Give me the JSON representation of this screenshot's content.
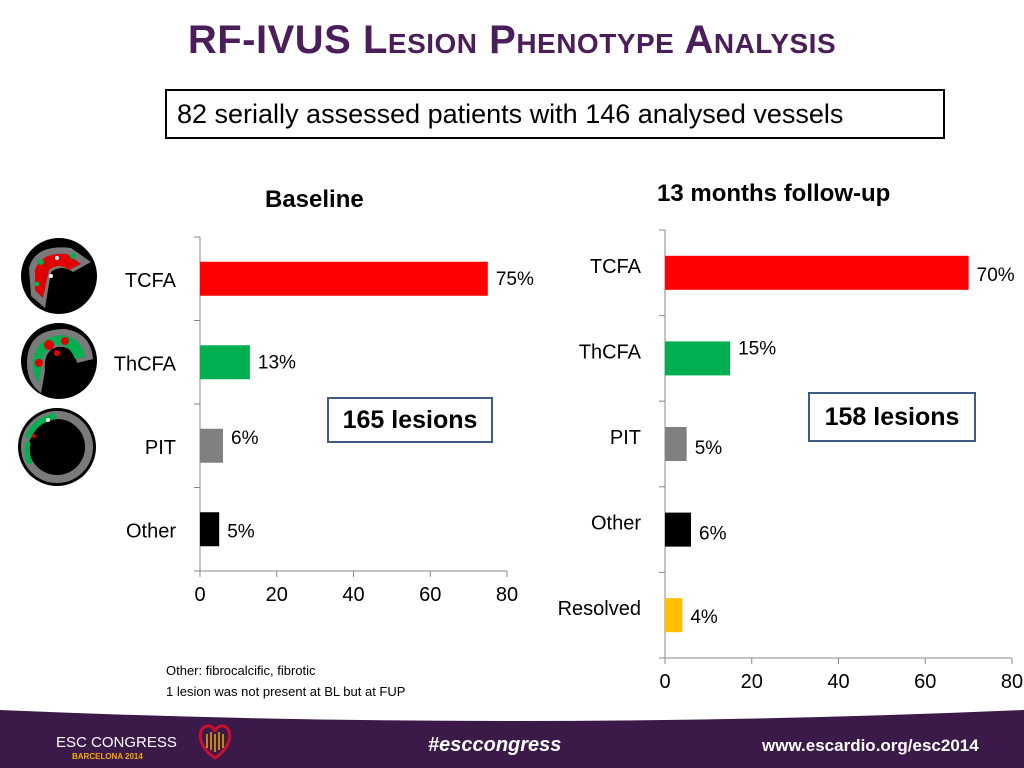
{
  "title": "RF-IVUS Lesion Phenotype Analysis",
  "info_box": "82 serially assessed patients with 146 analysed vessels",
  "footnotes": [
    "Other: fibrocalcific, fibrotic",
    "1 lesion was not present at BL but at FUP"
  ],
  "footer": {
    "logo_line1": "ESC CONGRESS",
    "logo_line2": "BARCELONA 2014",
    "hashtag": "#esccongress",
    "url": "www.escardio.org/esc2014"
  },
  "thumbnail_icons": [
    "ivus-tcfa-icon",
    "ivus-thcfa-icon",
    "ivus-pit-icon"
  ],
  "colors": {
    "title": "#4b1d5a",
    "tcfa": "#ff0000",
    "thcfa": "#00b050",
    "pit": "#808080",
    "other": "#000000",
    "resolved": "#ffc000",
    "lesion_box_border": "#3e5b86",
    "footer_bg": "#3b1a4a"
  },
  "chart_data": [
    {
      "type": "bar",
      "orientation": "horizontal",
      "title": "Baseline",
      "annotation": "165 lesions",
      "categories": [
        "TCFA",
        "ThCFA",
        "PIT",
        "Other"
      ],
      "values": [
        75,
        13,
        6,
        5
      ],
      "value_labels": [
        "75%",
        "13%",
        "6%",
        "5%"
      ],
      "bar_colors": [
        "#ff0000",
        "#00b050",
        "#808080",
        "#000000"
      ],
      "xlim": [
        0,
        80
      ],
      "xticks": [
        "0",
        "20",
        "40",
        "60",
        "80"
      ],
      "grid": false
    },
    {
      "type": "bar",
      "orientation": "horizontal",
      "title": "13 months follow-up",
      "annotation": "158 lesions",
      "categories": [
        "TCFA",
        "ThCFA",
        "PIT",
        "Other",
        "Resolved"
      ],
      "values": [
        70,
        15,
        5,
        6,
        4
      ],
      "value_labels": [
        "70%",
        "15%",
        "5%",
        "6%",
        "4%"
      ],
      "bar_colors": [
        "#ff0000",
        "#00b050",
        "#808080",
        "#000000",
        "#ffc000"
      ],
      "xlim": [
        0,
        80
      ],
      "xticks": [
        "0",
        "20",
        "40",
        "60",
        "80"
      ],
      "grid": false
    }
  ]
}
